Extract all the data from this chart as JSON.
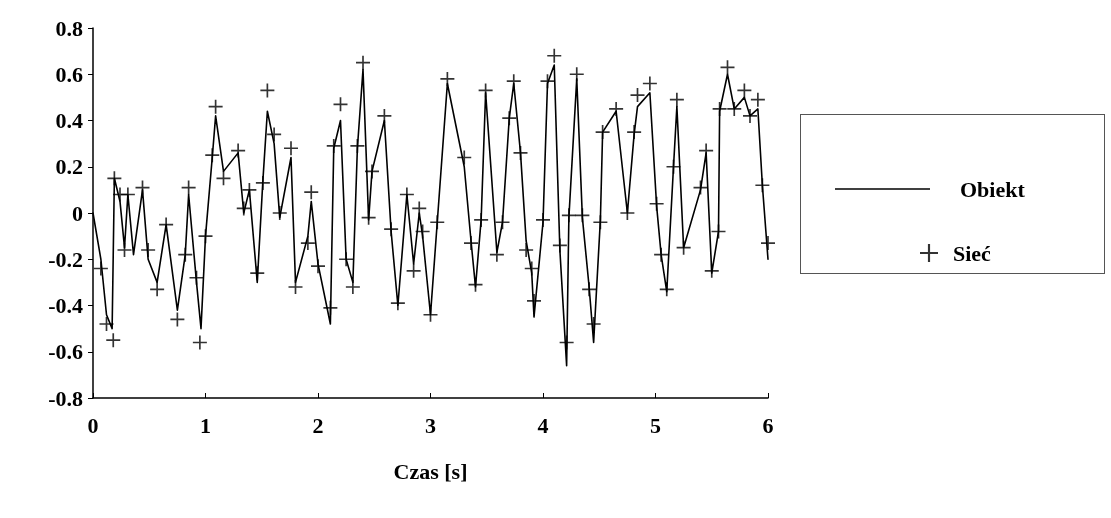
{
  "chart_data": {
    "type": "line",
    "xlabel": "Czas [s]",
    "xlim": [
      0,
      6
    ],
    "xticks": [
      0,
      1,
      2,
      3,
      4,
      5,
      6
    ],
    "ylim": [
      -0.8,
      0.8
    ],
    "yticks": [
      -0.8,
      -0.6,
      -0.4,
      -0.2,
      0,
      0.2,
      0.4,
      0.6,
      0.8
    ],
    "grid": false,
    "legend": "right",
    "series": [
      {
        "name": "Obiekt",
        "marker": "none",
        "line_style": "solid",
        "color": "#000000",
        "x": [
          0,
          0.07,
          0.12,
          0.17,
          0.19,
          0.24,
          0.28,
          0.31,
          0.36,
          0.44,
          0.49,
          0.57,
          0.65,
          0.75,
          0.82,
          0.85,
          0.92,
          0.96,
          1.0,
          1.06,
          1.09,
          1.16,
          1.29,
          1.34,
          1.39,
          1.46,
          1.51,
          1.55,
          1.61,
          1.66,
          1.76,
          1.8,
          1.91,
          1.94,
          2.0,
          2.11,
          2.14,
          2.2,
          2.25,
          2.31,
          2.35,
          2.4,
          2.45,
          2.48,
          2.59,
          2.65,
          2.71,
          2.79,
          2.85,
          2.9,
          2.93,
          3.0,
          3.06,
          3.15,
          3.3,
          3.36,
          3.4,
          3.45,
          3.49,
          3.59,
          3.64,
          3.7,
          3.74,
          3.8,
          3.85,
          3.9,
          3.92,
          4.0,
          4.04,
          4.1,
          4.15,
          4.21,
          4.23,
          4.3,
          4.35,
          4.41,
          4.45,
          4.51,
          4.53,
          4.65,
          4.75,
          4.81,
          4.84,
          4.95,
          5.01,
          5.05,
          5.1,
          5.16,
          5.19,
          5.25,
          5.4,
          5.45,
          5.5,
          5.56,
          5.57,
          5.64,
          5.7,
          5.79,
          5.84,
          5.91,
          5.95,
          6.0
        ],
        "values": [
          0,
          -0.2,
          -0.44,
          -0.5,
          0.15,
          0.05,
          -0.15,
          0.08,
          -0.18,
          0.1,
          -0.2,
          -0.3,
          -0.05,
          -0.42,
          -0.18,
          0.08,
          -0.3,
          -0.5,
          -0.1,
          0.24,
          0.42,
          0.18,
          0.26,
          0.0,
          0.1,
          -0.3,
          0.14,
          0.44,
          0.3,
          -0.02,
          0.24,
          -0.3,
          -0.1,
          0.05,
          -0.22,
          -0.48,
          0.28,
          0.4,
          -0.2,
          -0.3,
          0.28,
          0.62,
          -0.03,
          0.18,
          0.4,
          -0.08,
          -0.4,
          0.08,
          -0.22,
          0.0,
          -0.1,
          -0.44,
          -0.04,
          0.56,
          0.2,
          -0.12,
          -0.32,
          -0.03,
          0.52,
          -0.17,
          -0.04,
          0.41,
          0.56,
          0.26,
          -0.12,
          -0.26,
          -0.45,
          -0.04,
          0.56,
          0.64,
          -0.16,
          -0.66,
          -0.02,
          0.58,
          -0.02,
          -0.32,
          -0.56,
          -0.03,
          0.35,
          0.44,
          0.0,
          0.34,
          0.46,
          0.52,
          0.03,
          -0.18,
          -0.34,
          0.2,
          0.46,
          -0.15,
          0.1,
          0.26,
          -0.26,
          -0.08,
          0.44,
          0.6,
          0.45,
          0.5,
          0.42,
          0.45,
          0.12,
          -0.2
        ]
      },
      {
        "name": "Sieć",
        "type": "scatter",
        "marker": "cross",
        "color": "#000000",
        "x": [
          0.07,
          0.12,
          0.18,
          0.19,
          0.24,
          0.28,
          0.31,
          0.44,
          0.49,
          0.57,
          0.65,
          0.75,
          0.82,
          0.85,
          0.92,
          0.95,
          1.0,
          1.06,
          1.09,
          1.16,
          1.29,
          1.34,
          1.39,
          1.46,
          1.51,
          1.55,
          1.61,
          1.66,
          1.76,
          1.8,
          1.91,
          1.94,
          2.0,
          2.11,
          2.14,
          2.2,
          2.25,
          2.31,
          2.35,
          2.4,
          2.45,
          2.48,
          2.59,
          2.65,
          2.71,
          2.79,
          2.85,
          2.9,
          2.93,
          3.0,
          3.06,
          3.15,
          3.3,
          3.36,
          3.4,
          3.45,
          3.49,
          3.59,
          3.64,
          3.7,
          3.74,
          3.8,
          3.85,
          3.9,
          3.92,
          4.0,
          4.04,
          4.1,
          4.15,
          4.21,
          4.23,
          4.3,
          4.35,
          4.41,
          4.45,
          4.51,
          4.53,
          4.65,
          4.75,
          4.81,
          4.84,
          4.95,
          5.01,
          5.05,
          5.1,
          5.16,
          5.19,
          5.25,
          5.4,
          5.45,
          5.5,
          5.56,
          5.57,
          5.64,
          5.7,
          5.79,
          5.84,
          5.91,
          5.95,
          6.0
        ],
        "values": [
          -0.24,
          -0.48,
          -0.55,
          0.15,
          0.08,
          -0.16,
          0.08,
          0.11,
          -0.16,
          -0.33,
          -0.05,
          -0.46,
          -0.18,
          0.11,
          -0.28,
          -0.56,
          -0.1,
          0.25,
          0.46,
          0.15,
          0.27,
          0.02,
          0.1,
          -0.26,
          0.13,
          0.53,
          0.34,
          0.0,
          0.28,
          -0.32,
          -0.13,
          0.09,
          -0.23,
          -0.41,
          0.29,
          0.47,
          -0.2,
          -0.32,
          0.29,
          0.65,
          -0.02,
          0.18,
          0.42,
          -0.07,
          -0.39,
          0.08,
          -0.25,
          0.02,
          -0.08,
          -0.44,
          -0.04,
          0.58,
          0.24,
          -0.13,
          -0.31,
          -0.03,
          0.53,
          -0.18,
          -0.04,
          0.41,
          0.57,
          0.26,
          -0.16,
          -0.24,
          -0.38,
          -0.03,
          0.57,
          0.68,
          -0.14,
          -0.56,
          -0.01,
          0.6,
          -0.01,
          -0.33,
          -0.48,
          -0.04,
          0.35,
          0.45,
          0.0,
          0.35,
          0.51,
          0.56,
          0.04,
          -0.18,
          -0.33,
          0.2,
          0.49,
          -0.15,
          0.11,
          0.27,
          -0.25,
          -0.08,
          0.45,
          0.63,
          0.45,
          0.53,
          0.42,
          0.49,
          0.12,
          -0.13
        ]
      }
    ]
  }
}
